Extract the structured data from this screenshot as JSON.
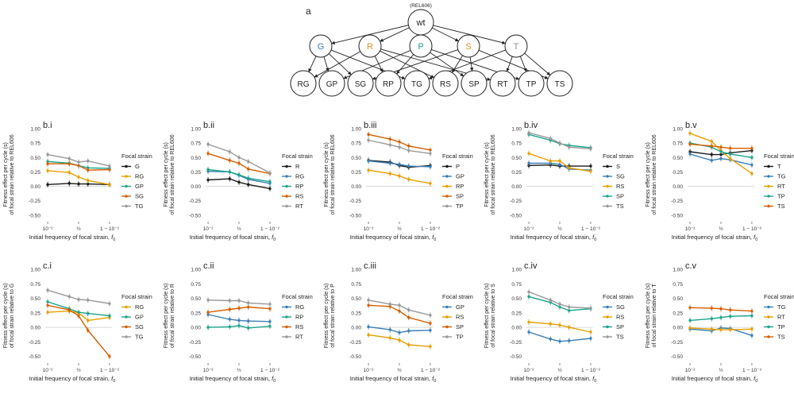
{
  "figure": {
    "panel_a_label": "a",
    "root_note": "(REL606)",
    "root": "wt",
    "level1": [
      "G",
      "R",
      "P",
      "S",
      "T"
    ],
    "level2": [
      "RG",
      "GP",
      "SG",
      "RP",
      "TG",
      "RS",
      "SP",
      "RT",
      "TP",
      "TS"
    ],
    "edges": [
      [
        "R",
        "G"
      ],
      [
        "G",
        "P"
      ],
      [
        "S",
        "G"
      ],
      [
        "R",
        "P"
      ],
      [
        "T",
        "G"
      ],
      [
        "R",
        "S"
      ],
      [
        "S",
        "P"
      ],
      [
        "R",
        "T"
      ],
      [
        "T",
        "P"
      ],
      [
        "T",
        "S"
      ]
    ],
    "colors": {
      "G": "#3a7fb5",
      "R": "#e08f1b",
      "P": "#1aa48b",
      "S": "#e08f1b",
      "T": "#8c8c8c",
      "text": "#222222",
      "zero": "#cccccc"
    },
    "legend_title": "Focal strain",
    "xlabel_prefix": "Initial frequency of focal strain, ",
    "xlabel_var": "f",
    "xlabel_sub": "0",
    "x_tick_labels": [
      "10⁻²",
      "½",
      "1 − 10⁻²"
    ],
    "y_tick_labels": [
      "1.00",
      "0.75",
      "0.50",
      "0.25",
      "0.00",
      "-0.25",
      "-0.50"
    ]
  },
  "chart_data": [
    {
      "type": "line",
      "id": "b.i",
      "title": "b.i",
      "ylabel_line1": "Fitness effect per cycle (s)",
      "ylabel_line2": "of focal strain relative to REL606",
      "ylim": [
        -0.6,
        1.0
      ],
      "series": [
        {
          "name": "G",
          "color": "#1a1a1a",
          "x": [
            0.01,
            0.2,
            0.5,
            0.8,
            0.99
          ],
          "values": [
            0.03,
            0.05,
            0.04,
            0.04,
            0.03
          ]
        },
        {
          "name": "RG",
          "color": "#e69f00",
          "x": [
            0.01,
            0.2,
            0.5,
            0.8,
            0.99
          ],
          "values": [
            0.27,
            0.24,
            0.16,
            0.1,
            0.03
          ]
        },
        {
          "name": "GP",
          "color": "#1aa48b",
          "x": [
            0.01,
            0.2,
            0.5,
            0.8,
            0.99
          ],
          "values": [
            0.43,
            0.4,
            0.36,
            0.32,
            0.31
          ]
        },
        {
          "name": "SG",
          "color": "#d55e00",
          "x": [
            0.01,
            0.2,
            0.5,
            0.8,
            0.99
          ],
          "values": [
            0.39,
            0.39,
            0.36,
            0.28,
            0.29
          ]
        },
        {
          "name": "TG",
          "color": "#999999",
          "x": [
            0.01,
            0.2,
            0.5,
            0.8,
            0.99
          ],
          "values": [
            0.55,
            0.48,
            0.42,
            0.44,
            0.35
          ]
        }
      ]
    },
    {
      "type": "line",
      "id": "b.ii",
      "title": "b.ii",
      "ylabel_line1": "Fitness effect per cycle (s)",
      "ylabel_line2": "of focal strain relative to REL606",
      "ylim": [
        -0.6,
        1.0
      ],
      "series": [
        {
          "name": "R",
          "color": "#1a1a1a",
          "x": [
            0.01,
            0.2,
            0.5,
            0.8,
            0.99
          ],
          "values": [
            0.11,
            0.13,
            0.07,
            0.03,
            -0.04
          ]
        },
        {
          "name": "RG",
          "color": "#3a7fb5",
          "x": [
            0.01,
            0.2,
            0.5,
            0.8,
            0.99
          ],
          "values": [
            0.26,
            0.25,
            0.19,
            0.12,
            0.05
          ]
        },
        {
          "name": "RP",
          "color": "#1aa48b",
          "x": [
            0.01,
            0.2,
            0.5,
            0.8,
            0.99
          ],
          "values": [
            0.29,
            0.25,
            0.2,
            0.14,
            0.08
          ]
        },
        {
          "name": "RS",
          "color": "#d55e00",
          "x": [
            0.01,
            0.2,
            0.5,
            0.8,
            0.99
          ],
          "values": [
            0.57,
            0.45,
            0.4,
            0.3,
            0.22
          ]
        },
        {
          "name": "RT",
          "color": "#999999",
          "x": [
            0.01,
            0.2,
            0.5,
            0.8,
            0.99
          ],
          "values": [
            0.73,
            0.6,
            0.5,
            0.43,
            0.23
          ]
        }
      ]
    },
    {
      "type": "line",
      "id": "b.iii",
      "title": "b.iii",
      "ylabel_line1": "Fitness effect per cycle (s)",
      "ylabel_line2": "of focal strain relative to REL606",
      "ylim": [
        -0.6,
        1.0
      ],
      "series": [
        {
          "name": "P",
          "color": "#1a1a1a",
          "x": [
            0.01,
            0.2,
            0.5,
            0.8,
            0.99
          ],
          "values": [
            0.45,
            0.42,
            0.36,
            0.33,
            0.36
          ]
        },
        {
          "name": "GP",
          "color": "#3a7fb5",
          "x": [
            0.01,
            0.2,
            0.5,
            0.8,
            0.99
          ],
          "values": [
            0.44,
            0.4,
            0.38,
            0.35,
            0.34
          ]
        },
        {
          "name": "RP",
          "color": "#e69f00",
          "x": [
            0.01,
            0.2,
            0.5,
            0.8,
            0.99
          ],
          "values": [
            0.28,
            0.22,
            0.18,
            0.12,
            0.05
          ]
        },
        {
          "name": "SP",
          "color": "#d55e00",
          "x": [
            0.01,
            0.2,
            0.5,
            0.8,
            0.99
          ],
          "values": [
            0.9,
            0.82,
            0.77,
            0.7,
            0.63
          ]
        },
        {
          "name": "TP",
          "color": "#999999",
          "x": [
            0.01,
            0.2,
            0.5,
            0.8,
            0.99
          ],
          "values": [
            0.8,
            0.72,
            0.68,
            0.62,
            0.57
          ]
        }
      ]
    },
    {
      "type": "line",
      "id": "b.iv",
      "title": "b.iv",
      "ylabel_line1": "Fitness effect per cycle (s)",
      "ylabel_line2": "of focal strain relative to REL606",
      "ylim": [
        -0.6,
        1.0
      ],
      "series": [
        {
          "name": "S",
          "color": "#1a1a1a",
          "x": [
            0.01,
            0.2,
            0.5,
            0.8,
            0.99
          ],
          "values": [
            0.36,
            0.37,
            0.35,
            0.35,
            0.35
          ]
        },
        {
          "name": "SG",
          "color": "#3a7fb5",
          "x": [
            0.01,
            0.2,
            0.5,
            0.8,
            0.99
          ],
          "values": [
            0.4,
            0.4,
            0.38,
            0.3,
            0.28
          ]
        },
        {
          "name": "RS",
          "color": "#e69f00",
          "x": [
            0.01,
            0.2,
            0.5,
            0.8,
            0.99
          ],
          "values": [
            0.57,
            0.44,
            0.44,
            0.32,
            0.26
          ]
        },
        {
          "name": "SP",
          "color": "#1aa48b",
          "x": [
            0.01,
            0.2,
            0.5,
            0.8,
            0.99
          ],
          "values": [
            0.9,
            0.8,
            0.74,
            0.71,
            0.67
          ]
        },
        {
          "name": "TS",
          "color": "#999999",
          "x": [
            0.01,
            0.2,
            0.5,
            0.8,
            0.99
          ],
          "values": [
            0.93,
            0.83,
            0.75,
            0.68,
            0.65
          ]
        }
      ]
    },
    {
      "type": "line",
      "id": "b.v",
      "title": "b.v",
      "ylabel_line1": "Fitness effect per cycle (s)",
      "ylabel_line2": "of focal strain relative to REL606",
      "ylim": [
        -0.6,
        1.0
      ],
      "series": [
        {
          "name": "T",
          "color": "#1a1a1a",
          "x": [
            0.01,
            0.2,
            0.5,
            0.8,
            0.99
          ],
          "values": [
            0.6,
            0.55,
            0.55,
            0.58,
            0.62
          ]
        },
        {
          "name": "TG",
          "color": "#3a7fb5",
          "x": [
            0.01,
            0.2,
            0.5,
            0.8,
            0.99
          ],
          "values": [
            0.56,
            0.45,
            0.48,
            0.46,
            0.37
          ]
        },
        {
          "name": "RT",
          "color": "#e69f00",
          "x": [
            0.01,
            0.2,
            0.5,
            0.8,
            0.99
          ],
          "values": [
            0.92,
            0.78,
            0.62,
            0.48,
            0.22
          ]
        },
        {
          "name": "TP",
          "color": "#1aa48b",
          "x": [
            0.01,
            0.2,
            0.5,
            0.8,
            0.99
          ],
          "values": [
            0.75,
            0.68,
            0.6,
            0.56,
            0.5
          ]
        },
        {
          "name": "TS",
          "color": "#d55e00",
          "x": [
            0.01,
            0.2,
            0.5,
            0.8,
            0.99
          ],
          "values": [
            0.73,
            0.7,
            0.68,
            0.66,
            0.66
          ]
        }
      ]
    },
    {
      "type": "line",
      "id": "c.i",
      "title": "c.i",
      "ylabel_line1": "Fitness effect per cycle (s)",
      "ylabel_line2": "of focal strain relative to G",
      "ylim": [
        -0.6,
        1.0
      ],
      "series": [
        {
          "name": "RG",
          "color": "#e69f00",
          "x": [
            0.01,
            0.2,
            0.5,
            0.8,
            0.99
          ],
          "values": [
            0.26,
            0.28,
            0.25,
            0.12,
            0.17
          ]
        },
        {
          "name": "GP",
          "color": "#1aa48b",
          "x": [
            0.01,
            0.2,
            0.5,
            0.8,
            0.99
          ],
          "values": [
            0.44,
            0.32,
            0.26,
            0.24,
            0.2
          ]
        },
        {
          "name": "SG",
          "color": "#d55e00",
          "x": [
            0.01,
            0.2,
            0.5,
            0.8,
            0.99
          ],
          "values": [
            0.38,
            0.3,
            0.2,
            -0.05,
            -0.5
          ]
        },
        {
          "name": "TG",
          "color": "#999999",
          "x": [
            0.01,
            0.2,
            0.5,
            0.8,
            0.99
          ],
          "values": [
            0.64,
            0.53,
            0.48,
            0.47,
            0.41
          ]
        }
      ]
    },
    {
      "type": "line",
      "id": "c.ii",
      "title": "c.ii",
      "ylabel_line1": "Fitness effect per cycle (s)",
      "ylabel_line2": "of focal strain relative to R",
      "ylim": [
        -0.6,
        1.0
      ],
      "series": [
        {
          "name": "RG",
          "color": "#3a7fb5",
          "x": [
            0.01,
            0.2,
            0.5,
            0.8,
            0.99
          ],
          "values": [
            0.22,
            0.14,
            0.12,
            0.11,
            0.1
          ]
        },
        {
          "name": "RP",
          "color": "#1aa48b",
          "x": [
            0.01,
            0.2,
            0.5,
            0.8,
            0.99
          ],
          "values": [
            0.0,
            0.01,
            0.03,
            -0.01,
            0.02
          ]
        },
        {
          "name": "RS",
          "color": "#d55e00",
          "x": [
            0.01,
            0.2,
            0.5,
            0.8,
            0.99
          ],
          "values": [
            0.26,
            0.31,
            0.33,
            0.35,
            0.32
          ]
        },
        {
          "name": "RT",
          "color": "#999999",
          "x": [
            0.01,
            0.2,
            0.5,
            0.8,
            0.99
          ],
          "values": [
            0.47,
            0.46,
            0.46,
            0.42,
            0.4
          ]
        }
      ]
    },
    {
      "type": "line",
      "id": "c.iii",
      "title": "c.iii",
      "ylabel_line1": "Fitness effect per cycle (s)",
      "ylabel_line2": "of focal strain relative to P",
      "ylim": [
        -0.6,
        1.0
      ],
      "series": [
        {
          "name": "GP",
          "color": "#3a7fb5",
          "x": [
            0.01,
            0.2,
            0.5,
            0.8,
            0.99
          ],
          "values": [
            0.01,
            -0.04,
            -0.09,
            -0.06,
            -0.05
          ]
        },
        {
          "name": "RS",
          "color": "#e69f00",
          "x": [
            0.01,
            0.2,
            0.5,
            0.8,
            0.99
          ],
          "values": [
            -0.13,
            -0.18,
            -0.22,
            -0.3,
            -0.33
          ]
        },
        {
          "name": "SP",
          "color": "#d55e00",
          "x": [
            0.01,
            0.2,
            0.5,
            0.8,
            0.99
          ],
          "values": [
            0.38,
            0.36,
            0.28,
            0.17,
            0.07
          ]
        },
        {
          "name": "TP",
          "color": "#999999",
          "x": [
            0.01,
            0.2,
            0.5,
            0.8,
            0.99
          ],
          "values": [
            0.47,
            0.4,
            0.38,
            0.3,
            0.21
          ]
        }
      ]
    },
    {
      "type": "line",
      "id": "c.iv",
      "title": "c.iv",
      "ylabel_line1": "Fitness effect per cycle (s)",
      "ylabel_line2": "of focal strain relative to S",
      "ylim": [
        -0.6,
        1.0
      ],
      "series": [
        {
          "name": "SG",
          "color": "#3a7fb5",
          "x": [
            0.01,
            0.2,
            0.5,
            0.8,
            0.99
          ],
          "values": [
            -0.08,
            -0.2,
            -0.24,
            -0.23,
            -0.19
          ]
        },
        {
          "name": "RS",
          "color": "#e69f00",
          "x": [
            0.01,
            0.2,
            0.5,
            0.8,
            0.99
          ],
          "values": [
            0.09,
            0.06,
            0.04,
            0.0,
            -0.08
          ]
        },
        {
          "name": "SP",
          "color": "#1aa48b",
          "x": [
            0.01,
            0.2,
            0.5,
            0.8,
            0.99
          ],
          "values": [
            0.53,
            0.43,
            0.35,
            0.29,
            0.32
          ]
        },
        {
          "name": "TS",
          "color": "#999999",
          "x": [
            0.01,
            0.2,
            0.5,
            0.8,
            0.99
          ],
          "values": [
            0.61,
            0.47,
            0.4,
            0.35,
            0.33
          ]
        }
      ]
    },
    {
      "type": "line",
      "id": "c.v",
      "title": "c.v",
      "ylabel_line1": "Fitness effect per cycle (s)",
      "ylabel_line2": "of focal strain relative to T",
      "ylim": [
        -0.6,
        1.0
      ],
      "series": [
        {
          "name": "TG",
          "color": "#3a7fb5",
          "x": [
            0.01,
            0.2,
            0.5,
            0.8,
            0.99
          ],
          "values": [
            -0.03,
            -0.06,
            -0.01,
            -0.02,
            -0.14
          ]
        },
        {
          "name": "RT",
          "color": "#e69f00",
          "x": [
            0.01,
            0.2,
            0.5,
            0.8,
            0.99
          ],
          "values": [
            -0.01,
            -0.03,
            -0.04,
            -0.04,
            -0.03
          ]
        },
        {
          "name": "TP",
          "color": "#1aa48b",
          "x": [
            0.01,
            0.2,
            0.5,
            0.8,
            0.99
          ],
          "values": [
            0.12,
            0.15,
            0.17,
            0.19,
            0.2
          ]
        },
        {
          "name": "TS",
          "color": "#d55e00",
          "x": [
            0.01,
            0.2,
            0.5,
            0.8,
            0.99
          ],
          "values": [
            0.34,
            0.33,
            0.32,
            0.3,
            0.28
          ]
        }
      ]
    }
  ]
}
